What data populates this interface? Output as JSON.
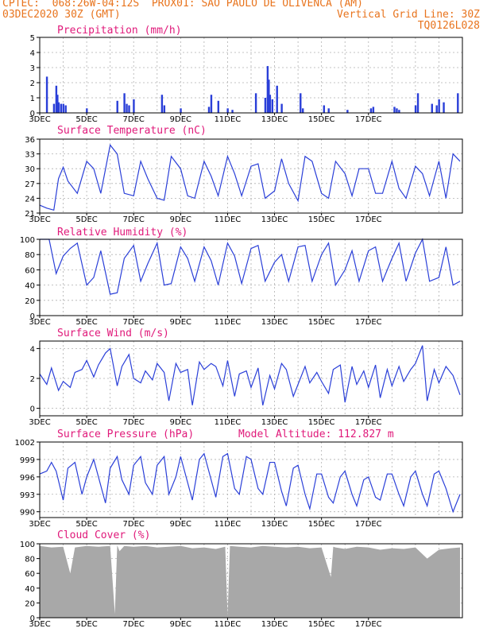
{
  "header": {
    "line1_left": "CPTEC:  068:26W-04:12S  PROX01: SAO PAULO DE OLIVENCA (AM)",
    "line2_left": "03DEC2020 30Z (GMT)",
    "line2_right": "Vertical Grid Line: 30Z",
    "line3_right": "TQ0126L028"
  },
  "x_tick_labels": [
    "3DEC",
    "5DEC",
    "7DEC",
    "9DEC",
    "11DEC",
    "13DEC",
    "15DEC",
    "17DEC"
  ],
  "colors": {
    "line": "#2a3fd8",
    "bars": "#2a3fd8",
    "cloud": "#a8a8a8",
    "title": "#e0197a",
    "header": "#e8741e"
  },
  "chart_data": [
    {
      "type": "bar",
      "title": "Precipitation (mm/h)",
      "ylim": [
        0,
        5
      ],
      "yticks": [
        0,
        1,
        2,
        3,
        4,
        5
      ],
      "x_unit": "days since 03DEC",
      "x": [
        0.3,
        0.6,
        0.7,
        0.75,
        0.8,
        0.9,
        1.0,
        1.1,
        2.0,
        3.3,
        3.6,
        3.7,
        3.8,
        4.0,
        5.2,
        5.3,
        6.0,
        7.2,
        7.3,
        7.6,
        8.0,
        8.2,
        9.2,
        9.6,
        9.7,
        9.75,
        9.8,
        9.9,
        10.1,
        10.3,
        11.1,
        11.2,
        12.1,
        12.3,
        13.1,
        14.1,
        14.2,
        15.1,
        15.2,
        15.3,
        16.0,
        16.1,
        16.7,
        16.9,
        17.0,
        17.2,
        17.8
      ],
      "values": [
        2.4,
        0.6,
        1.8,
        1.2,
        0.7,
        0.6,
        0.6,
        0.5,
        0.3,
        0.8,
        1.3,
        0.6,
        0.5,
        0.9,
        1.2,
        0.5,
        0.3,
        0.4,
        1.2,
        0.8,
        0.3,
        0.2,
        1.3,
        1.0,
        3.1,
        2.2,
        1.2,
        0.9,
        1.8,
        0.6,
        1.3,
        0.3,
        0.5,
        0.3,
        0.2,
        0.3,
        0.4,
        0.4,
        0.3,
        0.2,
        0.5,
        1.3,
        0.6,
        0.5,
        0.9,
        0.7,
        1.3
      ]
    },
    {
      "type": "line",
      "title": "Surface Temperature (nC)",
      "ylim": [
        21,
        36
      ],
      "yticks": [
        21,
        24,
        27,
        30,
        33,
        36
      ],
      "x_unit": "days since 03DEC",
      "x": [
        0.0,
        0.3,
        0.6,
        0.8,
        1.0,
        1.2,
        1.6,
        2.0,
        2.3,
        2.6,
        3.0,
        3.3,
        3.6,
        4.0,
        4.3,
        4.6,
        5.0,
        5.3,
        5.6,
        6.0,
        6.3,
        6.6,
        7.0,
        7.3,
        7.6,
        8.0,
        8.3,
        8.6,
        9.0,
        9.3,
        9.6,
        10.0,
        10.3,
        10.6,
        11.0,
        11.3,
        11.6,
        12.0,
        12.3,
        12.6,
        13.0,
        13.3,
        13.6,
        14.0,
        14.3,
        14.6,
        15.0,
        15.3,
        15.6,
        16.0,
        16.3,
        16.6,
        17.0,
        17.3,
        17.6,
        17.9
      ],
      "values": [
        22.6,
        22.0,
        21.6,
        28.0,
        30.3,
        27.5,
        25.0,
        31.5,
        30.0,
        25.0,
        34.8,
        33.0,
        25.0,
        24.5,
        31.5,
        28.0,
        24.0,
        23.6,
        32.5,
        30.0,
        24.5,
        24.0,
        31.5,
        28.5,
        24.5,
        32.5,
        29.0,
        24.5,
        30.5,
        31.0,
        24.0,
        25.5,
        32.0,
        27.0,
        23.5,
        32.5,
        31.5,
        25.0,
        24.0,
        31.5,
        29.0,
        24.5,
        30.0,
        30.0,
        25.0,
        25.0,
        31.5,
        26.0,
        24.0,
        30.5,
        29.0,
        24.5,
        31.5,
        24.0,
        33.0,
        31.5
      ]
    },
    {
      "type": "line",
      "title": "Relative Humidity (%)",
      "ylim": [
        0,
        100
      ],
      "yticks": [
        0,
        20,
        40,
        60,
        80,
        100
      ],
      "x_unit": "days since 03DEC",
      "x": [
        0.0,
        0.4,
        0.7,
        1.0,
        1.3,
        1.6,
        2.0,
        2.3,
        2.6,
        3.0,
        3.3,
        3.6,
        4.0,
        4.3,
        4.6,
        5.0,
        5.3,
        5.6,
        6.0,
        6.3,
        6.6,
        7.0,
        7.3,
        7.6,
        8.0,
        8.3,
        8.6,
        9.0,
        9.3,
        9.6,
        10.0,
        10.3,
        10.6,
        11.0,
        11.3,
        11.6,
        12.0,
        12.3,
        12.6,
        13.0,
        13.3,
        13.6,
        14.0,
        14.3,
        14.6,
        15.0,
        15.3,
        15.6,
        16.0,
        16.3,
        16.6,
        17.0,
        17.3,
        17.6,
        17.9
      ],
      "values": [
        100,
        100,
        55,
        78,
        88,
        95,
        40,
        50,
        85,
        28,
        30,
        75,
        92,
        45,
        68,
        95,
        40,
        42,
        90,
        75,
        45,
        90,
        72,
        40,
        95,
        78,
        42,
        88,
        92,
        45,
        70,
        80,
        45,
        90,
        92,
        45,
        80,
        95,
        40,
        60,
        85,
        45,
        85,
        90,
        45,
        75,
        95,
        45,
        82,
        100,
        45,
        50,
        90,
        40,
        45
      ]
    },
    {
      "type": "line",
      "title": "Surface Wind (m/s)",
      "ylim": [
        -0.5,
        4.5
      ],
      "yticks": [
        0,
        2,
        4
      ],
      "x_unit": "days since 03DEC",
      "x": [
        0.0,
        0.3,
        0.5,
        0.8,
        1.0,
        1.3,
        1.5,
        1.8,
        2.0,
        2.3,
        2.5,
        2.8,
        3.0,
        3.3,
        3.5,
        3.8,
        4.0,
        4.3,
        4.5,
        4.8,
        5.0,
        5.3,
        5.5,
        5.8,
        6.0,
        6.3,
        6.5,
        6.8,
        7.0,
        7.3,
        7.5,
        7.8,
        8.0,
        8.3,
        8.5,
        8.8,
        9.0,
        9.3,
        9.5,
        9.8,
        10.0,
        10.3,
        10.5,
        10.8,
        11.0,
        11.3,
        11.5,
        11.8,
        12.0,
        12.3,
        12.5,
        12.8,
        13.0,
        13.3,
        13.5,
        13.8,
        14.0,
        14.3,
        14.5,
        14.8,
        15.0,
        15.3,
        15.5,
        15.8,
        16.0,
        16.3,
        16.5,
        16.8,
        17.0,
        17.3,
        17.6,
        17.9
      ],
      "values": [
        2.3,
        1.6,
        2.7,
        1.2,
        1.8,
        1.4,
        2.4,
        2.6,
        3.2,
        2.1,
        2.9,
        3.7,
        4.0,
        1.5,
        2.8,
        3.6,
        2.0,
        1.7,
        2.5,
        1.9,
        3.0,
        2.4,
        0.5,
        3.0,
        2.4,
        2.6,
        0.2,
        3.1,
        2.6,
        3.0,
        2.8,
        1.5,
        3.2,
        0.8,
        2.3,
        2.5,
        1.4,
        2.7,
        0.2,
        2.2,
        1.3,
        3.0,
        2.6,
        0.8,
        1.6,
        2.8,
        1.7,
        2.4,
        1.8,
        1.0,
        2.6,
        2.9,
        0.4,
        2.8,
        1.6,
        2.5,
        1.4,
        2.9,
        0.7,
        2.6,
        1.5,
        2.8,
        1.8,
        2.6,
        3.0,
        4.2,
        0.5,
        2.6,
        1.7,
        2.8,
        2.2,
        0.9
      ]
    },
    {
      "type": "line",
      "title": "Surface Pressure (hPa)",
      "annotation": "Model Altitude: 112.827 m",
      "ylim": [
        989,
        1002
      ],
      "yticks": [
        990,
        993,
        996,
        999,
        1002
      ],
      "x_unit": "days since 03DEC",
      "x": [
        0.0,
        0.3,
        0.5,
        0.7,
        1.0,
        1.2,
        1.5,
        1.8,
        2.0,
        2.3,
        2.5,
        2.8,
        3.0,
        3.3,
        3.5,
        3.8,
        4.0,
        4.3,
        4.5,
        4.8,
        5.0,
        5.3,
        5.5,
        5.8,
        6.0,
        6.3,
        6.5,
        6.8,
        7.0,
        7.3,
        7.5,
        7.8,
        8.0,
        8.3,
        8.5,
        8.8,
        9.0,
        9.3,
        9.5,
        9.8,
        10.0,
        10.3,
        10.5,
        10.8,
        11.0,
        11.3,
        11.5,
        11.8,
        12.0,
        12.3,
        12.5,
        12.8,
        13.0,
        13.3,
        13.5,
        13.8,
        14.0,
        14.3,
        14.5,
        14.8,
        15.0,
        15.3,
        15.5,
        15.8,
        16.0,
        16.3,
        16.5,
        16.8,
        17.0,
        17.3,
        17.6,
        17.9
      ],
      "values": [
        996.5,
        997.0,
        998.5,
        997.0,
        992.0,
        997.5,
        998.5,
        993.0,
        996.0,
        999.0,
        996.0,
        991.5,
        997.5,
        999.5,
        995.5,
        993.0,
        998.0,
        999.5,
        995.0,
        993.0,
        998.0,
        999.5,
        993.0,
        996.0,
        999.5,
        995.0,
        992.0,
        999.0,
        1000.0,
        995.5,
        992.5,
        999.5,
        1000.0,
        994.0,
        993.0,
        999.5,
        999.0,
        994.0,
        993.0,
        998.5,
        998.5,
        993.5,
        991.0,
        997.5,
        998.0,
        993.0,
        990.5,
        996.5,
        996.5,
        992.5,
        991.5,
        996.0,
        997.0,
        993.0,
        991.0,
        995.5,
        996.0,
        992.5,
        992.0,
        996.5,
        996.5,
        993.0,
        991.0,
        996.0,
        997.0,
        993.0,
        991.0,
        996.5,
        997.0,
        994.0,
        990.0,
        993.0
      ]
    },
    {
      "type": "area",
      "title": "Cloud Cover (%)",
      "ylim": [
        0,
        100
      ],
      "yticks": [
        0,
        20,
        40,
        60,
        80,
        100
      ],
      "x_unit": "days since 03DEC",
      "x": [
        0.0,
        0.5,
        1.0,
        1.3,
        1.5,
        2.0,
        2.5,
        3.0,
        3.2,
        3.3,
        3.4,
        3.6,
        4.0,
        4.5,
        5.0,
        5.5,
        6.0,
        6.5,
        7.0,
        7.5,
        7.9,
        8.0,
        8.1,
        8.5,
        9.0,
        9.5,
        10.0,
        10.5,
        11.0,
        11.5,
        12.0,
        12.4,
        12.5,
        12.6,
        13.0,
        13.5,
        14.0,
        14.5,
        15.0,
        15.5,
        16.0,
        16.5,
        17.0,
        17.5,
        17.9
      ],
      "values": [
        97,
        95,
        96,
        60,
        95,
        97,
        96,
        97,
        5,
        98,
        90,
        97,
        96,
        97,
        95,
        96,
        97,
        94,
        95,
        93,
        96,
        3,
        97,
        96,
        95,
        97,
        96,
        95,
        96,
        94,
        95,
        55,
        96,
        95,
        93,
        96,
        95,
        92,
        94,
        93,
        95,
        80,
        92,
        94,
        95
      ]
    }
  ]
}
